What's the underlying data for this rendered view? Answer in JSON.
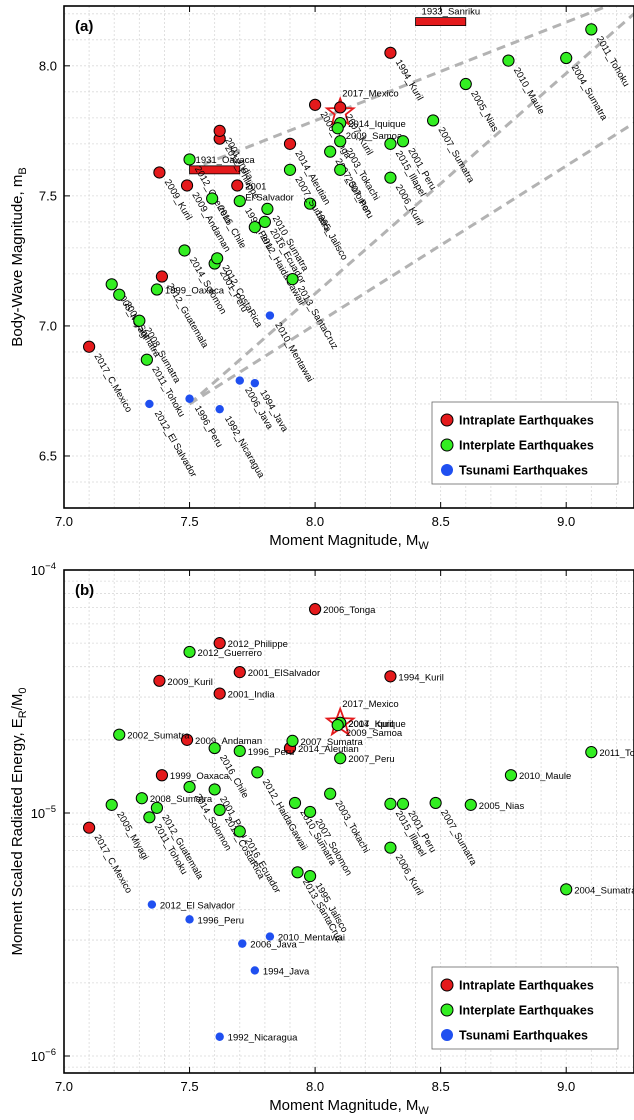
{
  "chart_data": [
    {
      "type": "scatter",
      "panel_label": "(a)",
      "xlabel": "Moment Magnitude, M",
      "xlabel_sub": "W",
      "ylabel": "Body-Wave Magnitude, m",
      "ylabel_sub": "B",
      "xlim": [
        7.0,
        9.27
      ],
      "ylim": [
        6.3,
        8.23
      ],
      "x_scale": "linear",
      "y_scale": "linear",
      "x_ticks": [
        7.0,
        7.5,
        8.0,
        8.5,
        9.0
      ],
      "x_tick_labels": [
        "7.0",
        "7.5",
        "8.0",
        "8.5",
        "9.0"
      ],
      "y_ticks": [
        6.5,
        7.0,
        7.5,
        8.0
      ],
      "y_tick_labels": [
        "6.5",
        "7.0",
        "7.5",
        "8.0"
      ],
      "grid": true,
      "legend": {
        "position": "bottom-right",
        "entries": [
          {
            "name": "Intraplate Earthquakes",
            "color": "#e41a1c"
          },
          {
            "name": "Interplate Earthquakes",
            "color": "#33ee22"
          },
          {
            "name": "Tsunami Earthquakes",
            "color": "#1f4ff0"
          }
        ]
      },
      "colors": {
        "intraplate": "#e41a1c",
        "interplate": "#33ee22",
        "tsunami": "#1f4ff0",
        "star": "#e41a1c",
        "samoa_label": "#e020e0"
      },
      "reference_lines": [
        {
          "x": [
            7.5,
            9.27
          ],
          "y": [
            7.6,
            8.27
          ]
        },
        {
          "x": [
            7.5,
            9.27
          ],
          "y": [
            6.7,
            8.2
          ]
        },
        {
          "x": [
            7.5,
            9.27
          ],
          "y": [
            6.7,
            7.78
          ]
        }
      ],
      "bars": [
        {
          "label": "1931_Oaxaca",
          "x0": 7.5,
          "x1": 7.7,
          "y": 7.6
        },
        {
          "label": "1933_Sanriku",
          "x0": 8.4,
          "x1": 8.6,
          "y": 8.17
        }
      ],
      "star": {
        "x": 8.1,
        "y": 7.82,
        "label": "2017_Mexico"
      },
      "points": [
        {
          "label": "2017_C.Mexico",
          "x": 7.1,
          "y": 6.92,
          "category": "intraplate",
          "rot": 60
        },
        {
          "label": "2012_Guatemala",
          "x": 7.39,
          "y": 7.19,
          "category": "intraplate",
          "rot": 60
        },
        {
          "label": "2009_Kuril",
          "x": 7.38,
          "y": 7.59,
          "category": "intraplate",
          "rot": 60
        },
        {
          "label": "2009_Andaman",
          "x": 7.49,
          "y": 7.54,
          "category": "intraplate",
          "rot": 60
        },
        {
          "label": "2012_Philippe",
          "x": 7.62,
          "y": 7.72,
          "category": "intraplate",
          "rot": 60
        },
        {
          "label": "2001_India",
          "x": 7.62,
          "y": 7.75,
          "category": "intraplate",
          "rot": 60
        },
        {
          "label": "2001\nEl Salvador",
          "x": 7.69,
          "y": 7.54,
          "category": "intraplate",
          "rot": 0
        },
        {
          "label": "2014_Aleutian",
          "x": 7.9,
          "y": 7.7,
          "category": "intraplate",
          "rot": 60
        },
        {
          "label": "2006_Tonga",
          "x": 8.0,
          "y": 7.85,
          "category": "intraplate",
          "rot": 60
        },
        {
          "label": "1994_Kuril",
          "x": 8.3,
          "y": 8.05,
          "category": "intraplate",
          "rot": 60
        },
        {
          "label": "2007_Kuril",
          "x": 8.1,
          "y": 7.84,
          "category": "intraplate",
          "rot": 60
        },
        {
          "label": "2005_Miyagi",
          "x": 7.19,
          "y": 7.16,
          "category": "interplate",
          "rot": 60
        },
        {
          "label": "2002_Sumatra",
          "x": 7.22,
          "y": 7.12,
          "category": "interplate",
          "rot": 60
        },
        {
          "label": "2008_Sumatra",
          "x": 7.3,
          "y": 7.02,
          "category": "interplate",
          "rot": 60
        },
        {
          "label": "2011_Tohoku",
          "x": 7.33,
          "y": 6.87,
          "category": "interplate",
          "rot": 60
        },
        {
          "label": "1999_Oaxaca",
          "x": 7.37,
          "y": 7.14,
          "category": "interplate",
          "rot": 0
        },
        {
          "label": "2014_Solomon",
          "x": 7.48,
          "y": 7.29,
          "category": "interplate",
          "rot": 60
        },
        {
          "label": "2012_Guerrero",
          "x": 7.5,
          "y": 7.64,
          "category": "interplate",
          "rot": 60
        },
        {
          "label": "2016_Chile",
          "x": 7.59,
          "y": 7.49,
          "category": "interplate",
          "rot": 60
        },
        {
          "label": "2001_Peru",
          "x": 7.6,
          "y": 7.24,
          "category": "interplate",
          "rot": 60
        },
        {
          "label": "2012_CostaRica",
          "x": 7.61,
          "y": 7.26,
          "category": "interplate",
          "rot": 60
        },
        {
          "label": "1996_Peru",
          "x": 7.7,
          "y": 7.48,
          "category": "interplate",
          "rot": 60
        },
        {
          "label": "2012_HaidaGawaii",
          "x": 7.76,
          "y": 7.38,
          "category": "interplate",
          "rot": 60
        },
        {
          "label": "2016_Ecuador",
          "x": 7.8,
          "y": 7.4,
          "category": "interplate",
          "rot": 60
        },
        {
          "label": "2010_Sumatra",
          "x": 7.81,
          "y": 7.45,
          "category": "interplate",
          "rot": 60
        },
        {
          "label": "2013_SantaCruz",
          "x": 7.91,
          "y": 7.18,
          "category": "interplate",
          "rot": 60
        },
        {
          "label": "1995_Jalisco",
          "x": 7.98,
          "y": 7.47,
          "category": "interplate",
          "rot": 60
        },
        {
          "label": "2007_Sumatra",
          "x": 7.9,
          "y": 7.6,
          "category": "interplate",
          "rot": 60
        },
        {
          "label": "2007_Solomon",
          "x": 8.06,
          "y": 7.67,
          "category": "interplate",
          "rot": 60
        },
        {
          "label": "2003_Tokachi",
          "x": 8.1,
          "y": 7.71,
          "category": "interplate",
          "rot": 60
        },
        {
          "label": "2007_Peru",
          "x": 8.1,
          "y": 7.6,
          "category": "interplate",
          "rot": 60
        },
        {
          "label": "2014_Iquique",
          "x": 8.1,
          "y": 7.78,
          "category": "interplate",
          "rot": 0
        },
        {
          "label": "2009_Samoa",
          "x": 8.09,
          "y": 7.76,
          "category": "interplate",
          "rot": 0
        },
        {
          "label": "2006_Kuril",
          "x": 8.3,
          "y": 7.57,
          "category": "interplate",
          "rot": 60
        },
        {
          "label": "2015_Illapel",
          "x": 8.3,
          "y": 7.7,
          "category": "interplate",
          "rot": 60
        },
        {
          "label": "2001_Peru",
          "x": 8.35,
          "y": 7.71,
          "category": "interplate",
          "rot": 60
        },
        {
          "label": "2007_Sumatra",
          "x": 8.47,
          "y": 7.79,
          "category": "interplate",
          "rot": 60
        },
        {
          "label": "2005_Nias",
          "x": 8.6,
          "y": 7.93,
          "category": "interplate",
          "rot": 60
        },
        {
          "label": "2010_Maule",
          "x": 8.77,
          "y": 8.02,
          "category": "interplate",
          "rot": 60
        },
        {
          "label": "2004_Sumatra",
          "x": 9.0,
          "y": 8.03,
          "category": "interplate",
          "rot": 60
        },
        {
          "label": "2011_Tohoku",
          "x": 9.1,
          "y": 8.14,
          "category": "interplate",
          "rot": 60
        },
        {
          "label": "2012_El Salvador",
          "x": 7.34,
          "y": 6.7,
          "category": "tsunami",
          "rot": 60
        },
        {
          "label": "1996_Peru",
          "x": 7.5,
          "y": 6.72,
          "category": "tsunami",
          "rot": 60
        },
        {
          "label": "1992_Nicaragua",
          "x": 7.62,
          "y": 6.68,
          "category": "tsunami",
          "rot": 60
        },
        {
          "label": "2006_Java",
          "x": 7.7,
          "y": 6.79,
          "category": "tsunami",
          "rot": 60
        },
        {
          "label": "1994_Java",
          "x": 7.76,
          "y": 6.78,
          "category": "tsunami",
          "rot": 60
        },
        {
          "label": "2010_Mentawai",
          "x": 7.82,
          "y": 7.04,
          "category": "tsunami",
          "rot": 60
        }
      ]
    },
    {
      "type": "scatter",
      "panel_label": "(b)",
      "xlabel": "Moment Magnitude, M",
      "xlabel_sub": "W",
      "ylabel": "Moment Scaled Radiated Energy, E",
      "ylabel_sub": "R",
      "ylabel_tail": "/M",
      "ylabel_tail_sub": "0",
      "xlim": [
        7.0,
        9.27
      ],
      "ylim_log10": [
        -6.07,
        -4.0
      ],
      "x_scale": "linear",
      "y_scale": "log",
      "x_ticks": [
        7.0,
        7.5,
        8.0,
        8.5,
        9.0
      ],
      "x_tick_labels": [
        "7.0",
        "7.5",
        "8.0",
        "8.5",
        "9.0"
      ],
      "y_ticks_log10": [
        -6,
        -5,
        -4
      ],
      "y_tick_base": "10",
      "y_tick_exponents": [
        "−6",
        "−5",
        "−4"
      ],
      "grid": true,
      "legend": {
        "position": "bottom-right",
        "entries": [
          {
            "name": "Intraplate Earthquakes",
            "color": "#e41a1c"
          },
          {
            "name": "Interplate Earthquakes",
            "color": "#33ee22"
          },
          {
            "name": "Tsunami Earthquakes",
            "color": "#1f4ff0"
          }
        ]
      },
      "colors": {
        "intraplate": "#e41a1c",
        "interplate": "#33ee22",
        "tsunami": "#1f4ff0",
        "star": "#e41a1c",
        "samoa_label": "#e020e0"
      },
      "star": {
        "x": 8.1,
        "y": 2.35e-05,
        "label": "2017_Mexico"
      },
      "points": [
        {
          "label": "2006_Tonga",
          "x": 8.0,
          "y": 6.9e-05,
          "category": "intraplate",
          "rot": 0
        },
        {
          "label": "2012_Philippe",
          "x": 7.62,
          "y": 5e-05,
          "category": "intraplate",
          "rot": 0
        },
        {
          "label": "2001_ElSalvador",
          "x": 7.7,
          "y": 3.8e-05,
          "category": "intraplate",
          "rot": 0
        },
        {
          "label": "2009_Kuril",
          "x": 7.38,
          "y": 3.5e-05,
          "category": "intraplate",
          "rot": 0
        },
        {
          "label": "1994_Kuril",
          "x": 8.3,
          "y": 3.65e-05,
          "category": "intraplate",
          "rot": 0
        },
        {
          "label": "2001_India",
          "x": 7.62,
          "y": 3.1e-05,
          "category": "intraplate",
          "rot": 0
        },
        {
          "label": "2009_Andaman",
          "x": 7.49,
          "y": 2e-05,
          "category": "intraplate",
          "rot": 0
        },
        {
          "label": "1999_Oaxaca",
          "x": 7.39,
          "y": 1.43e-05,
          "category": "intraplate",
          "rot": 0
        },
        {
          "label": "2014_Aleutian",
          "x": 7.9,
          "y": 1.85e-05,
          "category": "intraplate",
          "rot": 0
        },
        {
          "label": "2017_C.Mexico",
          "x": 7.1,
          "y": 8.7e-06,
          "category": "intraplate",
          "rot": 60
        },
        {
          "label": "2007_Kuril",
          "x": 8.1,
          "y": 2.35e-05,
          "category": "intraplate",
          "rot": 0
        },
        {
          "label": "2012_Guerrero",
          "x": 7.5,
          "y": 4.6e-05,
          "category": "interplate",
          "rot": 0
        },
        {
          "label": "2002_Sumatra",
          "x": 7.22,
          "y": 2.1e-05,
          "category": "interplate",
          "rot": 0
        },
        {
          "label": "2008_Sumatra",
          "x": 7.31,
          "y": 1.15e-05,
          "category": "interplate",
          "rot": 0
        },
        {
          "label": "2005_Miyagi",
          "x": 7.19,
          "y": 1.08e-05,
          "category": "interplate",
          "rot": 60
        },
        {
          "label": "2011_Tohoku",
          "x": 7.34,
          "y": 9.6e-06,
          "category": "interplate",
          "rot": 60
        },
        {
          "label": "2012_Guatemala",
          "x": 7.37,
          "y": 1.05e-05,
          "category": "interplate",
          "rot": 60
        },
        {
          "label": "2014_Solomon",
          "x": 7.5,
          "y": 1.28e-05,
          "category": "interplate",
          "rot": 60
        },
        {
          "label": "2016_Chile",
          "x": 7.6,
          "y": 1.85e-05,
          "category": "interplate",
          "rot": 60
        },
        {
          "label": "1996_Peru",
          "x": 7.7,
          "y": 1.8e-05,
          "category": "interplate",
          "rot": 0
        },
        {
          "label": "2001_Peru",
          "x": 7.6,
          "y": 1.25e-05,
          "category": "interplate",
          "rot": 60
        },
        {
          "label": "2012_CostaRica",
          "x": 7.62,
          "y": 1.03e-05,
          "category": "interplate",
          "rot": 60
        },
        {
          "label": "2012_HaidaGawaii",
          "x": 7.77,
          "y": 1.47e-05,
          "category": "interplate",
          "rot": 60
        },
        {
          "label": "2016_Ecuador",
          "x": 7.7,
          "y": 8.4e-06,
          "category": "interplate",
          "rot": 60
        },
        {
          "label": "2010_Sumatra",
          "x": 7.92,
          "y": 1.1e-05,
          "category": "interplate",
          "rot": 60
        },
        {
          "label": "2007_Sumatra",
          "x": 7.91,
          "y": 1.98e-05,
          "category": "interplate",
          "rot": 0
        },
        {
          "label": "2013_SantaCruz",
          "x": 7.93,
          "y": 5.7e-06,
          "category": "interplate",
          "rot": 60
        },
        {
          "label": "1995_Jalisco",
          "x": 7.98,
          "y": 5.5e-06,
          "category": "interplate",
          "rot": 60
        },
        {
          "label": "2003_Tokachi",
          "x": 8.06,
          "y": 1.2e-05,
          "category": "interplate",
          "rot": 60
        },
        {
          "label": "2007_Solomon",
          "x": 7.98,
          "y": 1.01e-05,
          "category": "interplate",
          "rot": 60
        },
        {
          "label": "2007_Peru",
          "x": 8.1,
          "y": 1.68e-05,
          "category": "interplate",
          "rot": 0
        },
        {
          "label": "2014_Iquique",
          "x": 8.1,
          "y": 2.35e-05,
          "category": "interplate",
          "rot": 0
        },
        {
          "label": "2009_Samoa",
          "x": 8.09,
          "y": 2.3e-05,
          "category": "interplate",
          "rot": 0
        },
        {
          "label": "2015_Illapel",
          "x": 8.3,
          "y": 1.09e-05,
          "category": "interplate",
          "rot": 60
        },
        {
          "label": "2001_Peru",
          "x": 8.35,
          "y": 1.09e-05,
          "category": "interplate",
          "rot": 60
        },
        {
          "label": "2006_Kuril",
          "x": 8.3,
          "y": 7.2e-06,
          "category": "interplate",
          "rot": 60
        },
        {
          "label": "2007_Sumatra",
          "x": 8.48,
          "y": 1.1e-05,
          "category": "interplate",
          "rot": 60
        },
        {
          "label": "2005_Nias",
          "x": 8.62,
          "y": 1.08e-05,
          "category": "interplate",
          "rot": 0
        },
        {
          "label": "2010_Maule",
          "x": 8.78,
          "y": 1.43e-05,
          "category": "interplate",
          "rot": 0
        },
        {
          "label": "2011_Tohoku",
          "x": 9.1,
          "y": 1.78e-05,
          "category": "interplate",
          "rot": 0
        },
        {
          "label": "2004_Sumatra",
          "x": 9.0,
          "y": 4.85e-06,
          "category": "interplate",
          "rot": 0
        },
        {
          "label": "2012_El Salvador",
          "x": 7.35,
          "y": 4.2e-06,
          "category": "tsunami",
          "rot": 0
        },
        {
          "label": "1996_Peru",
          "x": 7.5,
          "y": 3.65e-06,
          "category": "tsunami",
          "rot": 0
        },
        {
          "label": "2010_Mentawai",
          "x": 7.82,
          "y": 3.1e-06,
          "category": "tsunami",
          "rot": 0
        },
        {
          "label": "2006_Java",
          "x": 7.71,
          "y": 2.9e-06,
          "category": "tsunami",
          "rot": 0
        },
        {
          "label": "1994_Java",
          "x": 7.76,
          "y": 2.25e-06,
          "category": "tsunami",
          "rot": 0
        },
        {
          "label": "1992_Nicaragua",
          "x": 7.62,
          "y": 1.2e-06,
          "category": "tsunami",
          "rot": 0
        }
      ]
    }
  ]
}
